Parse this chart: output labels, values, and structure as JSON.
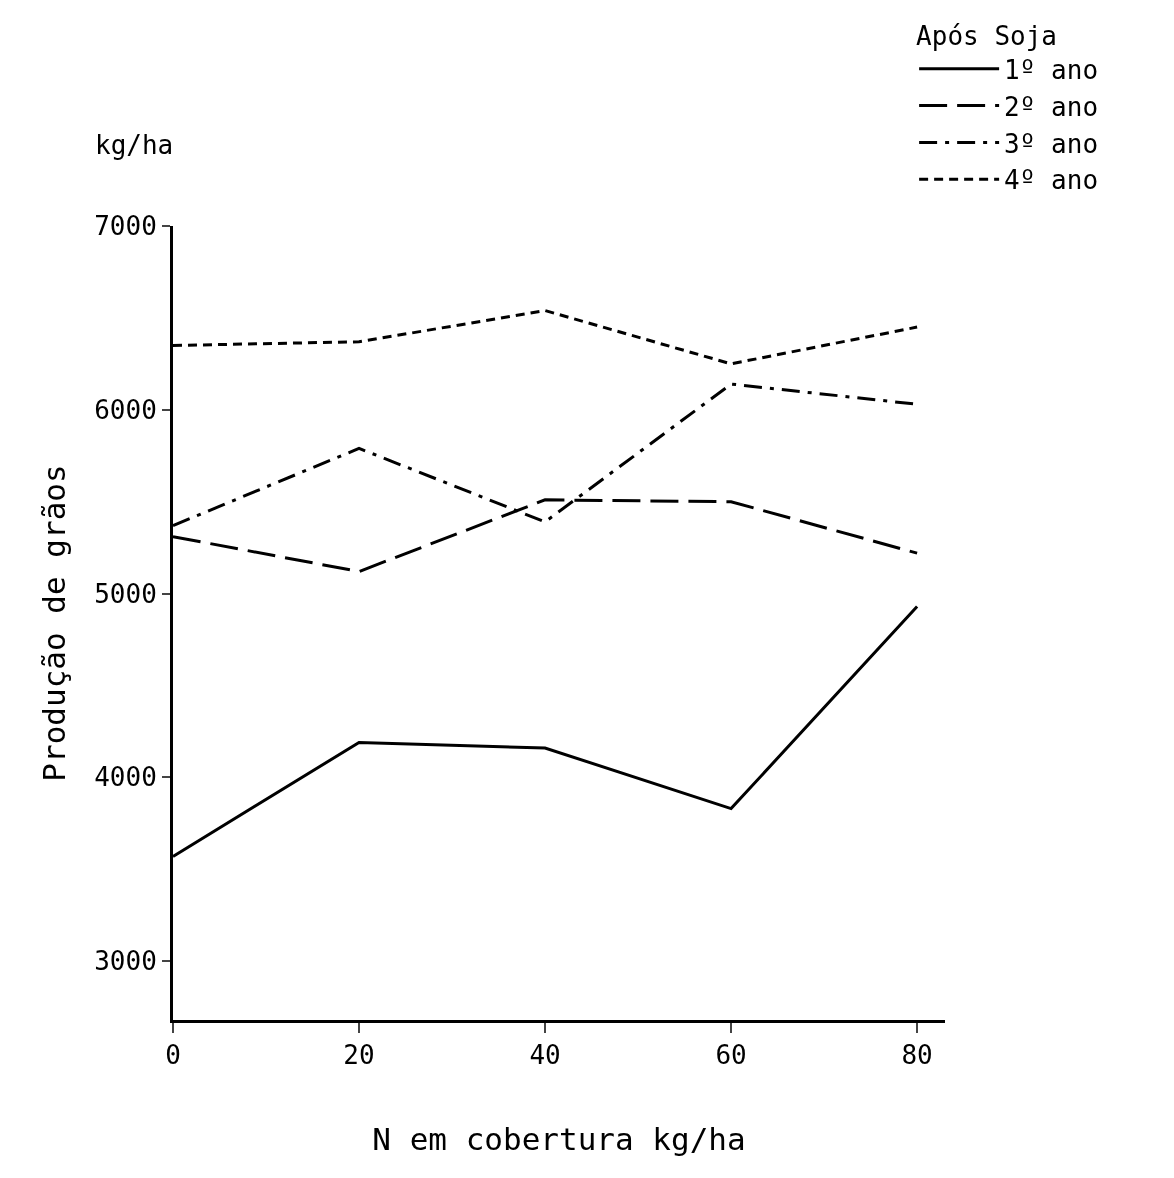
{
  "chart_data": {
    "type": "line",
    "xlabel": "N em cobertura kg/ha",
    "ylabel": "Produção de grãos",
    "annotations": [
      "kg/ha"
    ],
    "legend_title": "Após Soja",
    "legend": "top right",
    "grid": false,
    "marker": "none",
    "x": [
      0,
      20,
      40,
      60,
      80
    ],
    "xlim": [
      0,
      83
    ],
    "xticks": [
      0,
      20,
      40,
      60,
      80
    ],
    "ylim": [
      2680,
      7000
    ],
    "yticks": [
      3000,
      4000,
      5000,
      6000,
      7000
    ],
    "series": [
      {
        "name": "1º ano",
        "color": "#000000",
        "line_style": "solid",
        "values": [
          3570,
          4190,
          4160,
          3830,
          4930
        ]
      },
      {
        "name": "2º ano",
        "color": "#000000",
        "line_style": "dashed",
        "values": [
          5310,
          5120,
          5510,
          5500,
          5220
        ]
      },
      {
        "name": "3º ano",
        "color": "#000000",
        "line_style": "dashdot",
        "values": [
          5370,
          5790,
          5390,
          6140,
          6030
        ]
      },
      {
        "name": "4º ano",
        "color": "#000000",
        "line_style": "dotted",
        "values": [
          6350,
          6370,
          6540,
          6250,
          6450
        ]
      }
    ]
  }
}
